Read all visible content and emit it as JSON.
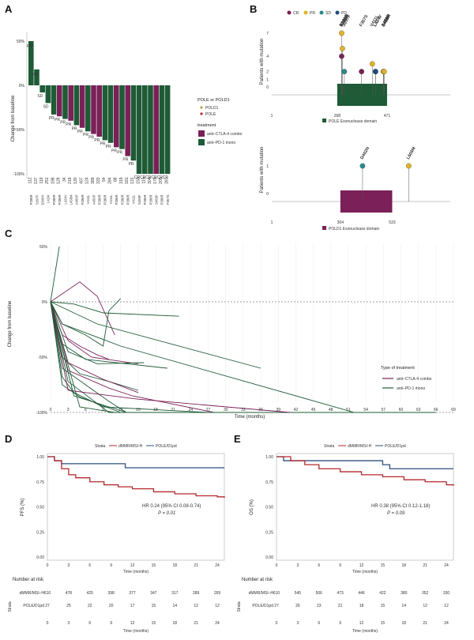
{
  "colors": {
    "purple": "#7b2058",
    "green": "#1e5b36",
    "red": "#b3282d",
    "blue": "#2c4f7f",
    "cr": "#7b2058",
    "pr": "#e0b32a",
    "sd": "#2a8b8b",
    "pd": "#1f4a7a"
  },
  "panels": {
    "a": "A",
    "b": "B",
    "c": "C",
    "d": "D",
    "e": "E"
  },
  "chart_data": [
    {
      "id": "A",
      "type": "bar",
      "ylabel": "Change from baseline",
      "yticks": [
        "50%",
        "0%",
        "-50%",
        "-100%"
      ],
      "ylim": [
        -100,
        60
      ],
      "legend": {
        "title1": "POLE or POLD1",
        "pole": "POLE",
        "pold1": "POLD1",
        "title2": "treatment",
        "combo": "anti–CTLA-4 combo",
        "mono": "anti–PD-1 mono"
      },
      "patients": [
        "112",
        "137",
        "119",
        "251",
        "198",
        "129",
        "34",
        "219",
        "130",
        "407",
        "124",
        "389",
        "333",
        "54",
        "284",
        "88",
        "319",
        "181",
        "131",
        "150",
        "115",
        "304",
        "178",
        "205",
        "397"
      ],
      "mutations": [
        "P286R",
        "S297F",
        "D340N",
        "L424I",
        "P286R",
        "P286R",
        "L424V",
        "L458M",
        "A456P",
        "P286R",
        "V411L",
        "A456P",
        "P286R",
        "P286R",
        "V411L",
        "P286R",
        "P286R",
        "P286R",
        "V411L",
        "S459F",
        "P286R",
        "P286R",
        "S459F",
        "P286R",
        "F367S"
      ],
      "values": [
        50,
        18,
        -8,
        -20,
        -33,
        -35,
        -38,
        -40,
        -45,
        -48,
        -52,
        -55,
        -58,
        -62,
        -65,
        -70,
        -72,
        -80,
        -85,
        -100,
        -100,
        -100,
        -100,
        -100,
        -100
      ],
      "response": [
        "PD",
        "PD",
        "SD",
        "SD",
        "PR",
        "PR",
        "PR",
        "PR",
        "PR",
        "PR",
        "PR",
        "PR",
        "PR",
        "PR",
        "PR",
        "PR",
        "PR",
        "PR",
        "PR",
        "CR",
        "CR",
        "CR",
        "CR",
        "CR",
        "CR"
      ],
      "treatment": [
        "mono",
        "mono",
        "mono",
        "mono",
        "mono",
        "combo",
        "mono",
        "combo",
        "mono",
        "combo",
        "mono",
        "combo",
        "combo",
        "mono",
        "mono",
        "combo",
        "mono",
        "combo",
        "mono",
        "mono",
        "mono",
        "mono",
        "combo",
        "mono",
        "mono"
      ]
    },
    {
      "id": "B",
      "type": "scatter",
      "ylabel": "Patients with mutation",
      "legend": {
        "cr": "CR",
        "pr": "PR",
        "sd": "SD",
        "pd": "PD"
      },
      "pole": {
        "domain_label": "POLE Exonuclease domain",
        "ticks": [
          "1",
          "268",
          "471"
        ],
        "yticks": [
          "7",
          "4",
          "2",
          "1",
          "0"
        ],
        "mutations": [
          {
            "label": "P286R",
            "count": 7,
            "resp": "pr",
            "pos": 286
          },
          {
            "label": "P286R",
            "count": 4,
            "resp": "cr",
            "pos": 286
          },
          {
            "label": "P286R",
            "count": 5,
            "resp": "pr",
            "pos": 289
          },
          {
            "label": "S297F",
            "count": 2,
            "resp": "sd",
            "pos": 297
          },
          {
            "label": "F367S",
            "count": 2,
            "resp": "cr",
            "pos": 367
          },
          {
            "label": "V411L",
            "count": 3,
            "resp": "pr",
            "pos": 411
          },
          {
            "label": "L424I",
            "count": 2,
            "resp": "sd",
            "pos": 424
          },
          {
            "label": "L424V",
            "count": 2,
            "resp": "pd",
            "pos": 424
          },
          {
            "label": "A456P",
            "count": 2,
            "resp": "pr",
            "pos": 456
          },
          {
            "label": "L458M",
            "count": 2,
            "resp": "pr",
            "pos": 458
          },
          {
            "label": "S459F",
            "count": 2,
            "resp": "pr",
            "pos": 459
          }
        ]
      },
      "pold1": {
        "domain_label": "POLD1 Exonuclease domain",
        "ticks": [
          "1",
          "304",
          "533"
        ],
        "yticks": [
          "1",
          "0"
        ],
        "mutations": [
          {
            "label": "D402N",
            "count": 1,
            "resp": "sd",
            "pos": 402
          },
          {
            "label": "L606M",
            "count": 1,
            "resp": "pr",
            "pos": 606
          }
        ]
      }
    },
    {
      "id": "C",
      "type": "line",
      "xlabel": "Time (months)",
      "ylabel": "Change from baseline",
      "yticks": [
        "50%",
        "0%",
        "-50%",
        "-100%"
      ],
      "xticks": [
        "0",
        "3",
        "6",
        "9",
        "12",
        "15",
        "18",
        "21",
        "24",
        "27",
        "30",
        "33",
        "36",
        "39",
        "42",
        "45",
        "48",
        "51",
        "54",
        "57",
        "60",
        "63",
        "66",
        "69"
      ],
      "legend_title": "Type of treatment",
      "legend": {
        "combo": "anti–CTLA-4 combo",
        "mono": "anti–PD-1 mono"
      },
      "series": [
        {
          "t": "mono",
          "pts": [
            [
              0,
              0
            ],
            [
              1.5,
              50
            ]
          ]
        },
        {
          "t": "combo",
          "pts": [
            [
              0,
              0
            ],
            [
              5,
              18
            ],
            [
              8,
              5
            ],
            [
              11,
              -30
            ]
          ]
        },
        {
          "t": "mono",
          "pts": [
            [
              0,
              0
            ],
            [
              4,
              -2
            ],
            [
              9,
              -10
            ],
            [
              22,
              -13
            ]
          ]
        },
        {
          "t": "mono",
          "pts": [
            [
              0,
              0
            ],
            [
              2,
              -20
            ],
            [
              6,
              -30
            ],
            [
              9,
              -40
            ],
            [
              10,
              -8
            ],
            [
              12,
              3
            ]
          ]
        },
        {
          "t": "combo",
          "pts": [
            [
              0,
              0
            ],
            [
              2,
              -30
            ],
            [
              5,
              -40
            ],
            [
              8,
              -48
            ],
            [
              10,
              -52
            ]
          ]
        },
        {
          "t": "mono",
          "pts": [
            [
              0,
              0
            ],
            [
              2,
              -38
            ],
            [
              6,
              -52
            ],
            [
              20,
              -60
            ]
          ]
        },
        {
          "t": "combo",
          "pts": [
            [
              0,
              0
            ],
            [
              3,
              -35
            ],
            [
              7,
              -50
            ],
            [
              15,
              -56
            ]
          ]
        },
        {
          "t": "mono",
          "pts": [
            [
              0,
              0
            ],
            [
              3,
              -45
            ],
            [
              8,
              -56
            ],
            [
              16,
              -55
            ]
          ]
        },
        {
          "t": "mono",
          "pts": [
            [
              0,
              0
            ],
            [
              2,
              -50
            ],
            [
              5,
              -65
            ],
            [
              10,
              -72
            ],
            [
              15,
              -80
            ]
          ]
        },
        {
          "t": "combo",
          "pts": [
            [
              0,
              0
            ],
            [
              3,
              -55
            ],
            [
              9,
              -70
            ],
            [
              15,
              -82
            ]
          ]
        },
        {
          "t": "mono",
          "pts": [
            [
              0,
              0
            ],
            [
              2,
              -60
            ],
            [
              6,
              -75
            ],
            [
              10,
              -90
            ],
            [
              13,
              -100
            ],
            [
              16,
              -100
            ]
          ]
        },
        {
          "t": "combo",
          "pts": [
            [
              0,
              0
            ],
            [
              3,
              -62
            ],
            [
              10,
              -78
            ],
            [
              14,
              -85
            ],
            [
              28,
              -100
            ]
          ]
        },
        {
          "t": "mono",
          "pts": [
            [
              0,
              0
            ],
            [
              2,
              -68
            ],
            [
              4,
              -82
            ],
            [
              9,
              -95
            ],
            [
              27,
              -100
            ]
          ]
        },
        {
          "t": "mono",
          "pts": [
            [
              0,
              0
            ],
            [
              3,
              -72
            ],
            [
              8,
              -92
            ],
            [
              10,
              -100
            ],
            [
              58,
              -100
            ]
          ]
        },
        {
          "t": "mono",
          "pts": [
            [
              0,
              0
            ],
            [
              2,
              -75
            ],
            [
              5,
              -86
            ],
            [
              12,
              -100
            ]
          ]
        },
        {
          "t": "combo",
          "pts": [
            [
              0,
              0
            ],
            [
              3,
              -80
            ],
            [
              15,
              -88
            ],
            [
              41,
              -100
            ]
          ]
        },
        {
          "t": "mono",
          "pts": [
            [
              0,
              0
            ],
            [
              4,
              -85
            ],
            [
              10,
              -95
            ],
            [
              13,
              -100
            ]
          ]
        },
        {
          "t": "mono",
          "pts": [
            [
              0,
              0
            ],
            [
              2,
              -20
            ],
            [
              12,
              -40
            ],
            [
              52,
              -100
            ],
            [
              66,
              -100
            ]
          ]
        },
        {
          "t": "mono",
          "pts": [
            [
              0,
              0
            ],
            [
              8,
              -20
            ],
            [
              36,
              -60
            ]
          ]
        },
        {
          "t": "mono",
          "pts": [
            [
              0,
              0
            ],
            [
              5,
              -95
            ],
            [
              11,
              -100
            ]
          ]
        }
      ]
    },
    {
      "id": "D",
      "type": "line",
      "ylabel": "PFS (%)",
      "xlabel": "Time (months)",
      "strata_label": "Strata",
      "series_names": [
        "dMMR/MSI-H",
        "POLE/D1pd"
      ],
      "yticks": [
        "1.00",
        "0.75",
        "0.50",
        "0.25",
        "0.00"
      ],
      "xticks": [
        "0",
        "3",
        "6",
        "9",
        "12",
        "15",
        "18",
        "21",
        "24"
      ],
      "hr": "HR 0.24 (95% CI 0.08-0.74)",
      "p": "P = 0.01",
      "curve_msi": [
        [
          0,
          1
        ],
        [
          1,
          0.96
        ],
        [
          2,
          0.88
        ],
        [
          3,
          0.82
        ],
        [
          4,
          0.79
        ],
        [
          6,
          0.75
        ],
        [
          8,
          0.72
        ],
        [
          10,
          0.7
        ],
        [
          12,
          0.68
        ],
        [
          15,
          0.65
        ],
        [
          18,
          0.63
        ],
        [
          21,
          0.61
        ],
        [
          24,
          0.6
        ],
        [
          25,
          0.59
        ]
      ],
      "curve_pole": [
        [
          0,
          1
        ],
        [
          1,
          0.96
        ],
        [
          2,
          0.93
        ],
        [
          3,
          0.93
        ],
        [
          10,
          0.93
        ],
        [
          11,
          0.89
        ],
        [
          25,
          0.89
        ]
      ],
      "risk_title": "Number at risk",
      "risk_rows": [
        {
          "label": "dMMR/MSI–H",
          "values": [
            "610",
            "478",
            "425",
            "398",
            "377",
            "347",
            "317",
            "289",
            "269"
          ]
        },
        {
          "label": "POLE/D1pd",
          "values": [
            "27",
            "25",
            "22",
            "20",
            "17",
            "15",
            "14",
            "12",
            "12"
          ]
        }
      ]
    },
    {
      "id": "E",
      "type": "line",
      "ylabel": "OS (%)",
      "xlabel": "Time (months)",
      "strata_label": "Strata",
      "series_names": [
        "dMMR/MSI-H",
        "POLE/D1pd"
      ],
      "yticks": [
        "1.00",
        "0.75",
        "0.50",
        "0.25",
        "0.00"
      ],
      "xticks": [
        "0",
        "3",
        "6",
        "9",
        "12",
        "15",
        "18",
        "21",
        "24"
      ],
      "hr": "HR 0.38 (95% CI 0.12-1.18)",
      "p": "P = 0.09",
      "curve_msi": [
        [
          0,
          1
        ],
        [
          2,
          0.96
        ],
        [
          4,
          0.92
        ],
        [
          6,
          0.88
        ],
        [
          9,
          0.85
        ],
        [
          12,
          0.82
        ],
        [
          15,
          0.8
        ],
        [
          18,
          0.77
        ],
        [
          21,
          0.75
        ],
        [
          24,
          0.72
        ],
        [
          25,
          0.71
        ]
      ],
      "curve_pole": [
        [
          0,
          1
        ],
        [
          1,
          0.96
        ],
        [
          14,
          0.96
        ],
        [
          15,
          0.92
        ],
        [
          16,
          0.88
        ],
        [
          25,
          0.88
        ]
      ],
      "risk_title": "Number at risk",
      "risk_rows": [
        {
          "label": "dMMR/MSI–H",
          "values": [
            "610",
            "545",
            "506",
            "473",
            "446",
            "422",
            "380",
            "352",
            "330"
          ]
        },
        {
          "label": "POLE/D1pd",
          "values": [
            "27",
            "26",
            "23",
            "21",
            "18",
            "15",
            "14",
            "12",
            "12"
          ]
        }
      ]
    }
  ]
}
